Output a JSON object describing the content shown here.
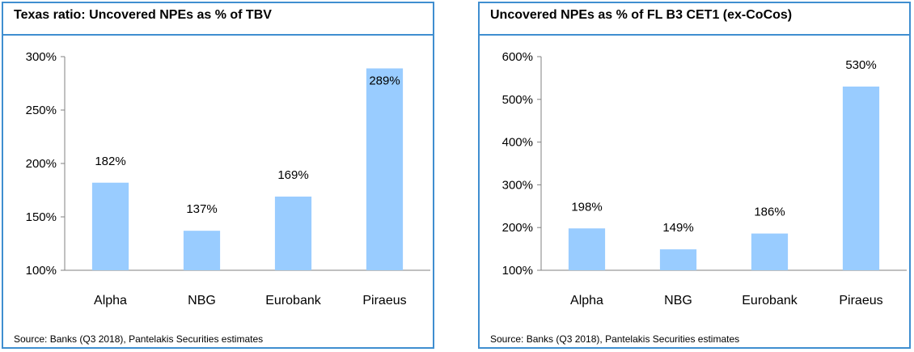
{
  "chart_data": [
    {
      "type": "bar",
      "title": "Texas ratio: Uncovered NPEs as % of TBV",
      "categories": [
        "Alpha",
        "NBG",
        "Eurobank",
        "Piraeus"
      ],
      "values": [
        182,
        137,
        169,
        289
      ],
      "data_labels": [
        "182%",
        "137%",
        "169%",
        "289%"
      ],
      "ylim": [
        100,
        300
      ],
      "yticks": [
        100,
        150,
        200,
        250,
        300
      ],
      "ytick_labels": [
        "100%",
        "150%",
        "200%",
        "250%",
        "300%"
      ],
      "xlabel": "",
      "ylabel": "",
      "grid": false,
      "bar_color": "#99ccff",
      "source": "Source: Banks (Q3 2018), Pantelakis Securities estimates"
    },
    {
      "type": "bar",
      "title": "Uncovered NPEs as % of FL B3 CET1 (ex-CoCos)",
      "categories": [
        "Alpha",
        "NBG",
        "Eurobank",
        "Piraeus"
      ],
      "values": [
        198,
        149,
        186,
        530
      ],
      "data_labels": [
        "198%",
        "149%",
        "186%",
        "530%"
      ],
      "ylim": [
        100,
        600
      ],
      "yticks": [
        100,
        200,
        300,
        400,
        500,
        600
      ],
      "ytick_labels": [
        "100%",
        "200%",
        "300%",
        "400%",
        "500%",
        "600%"
      ],
      "xlabel": "",
      "ylabel": "",
      "grid": false,
      "bar_color": "#99ccff",
      "source": "Source: Banks (Q3 2018), Pantelakis Securities estimates"
    }
  ],
  "colors": {
    "frame": "#3f8ed0",
    "axis": "#808080",
    "text": "#000000"
  }
}
